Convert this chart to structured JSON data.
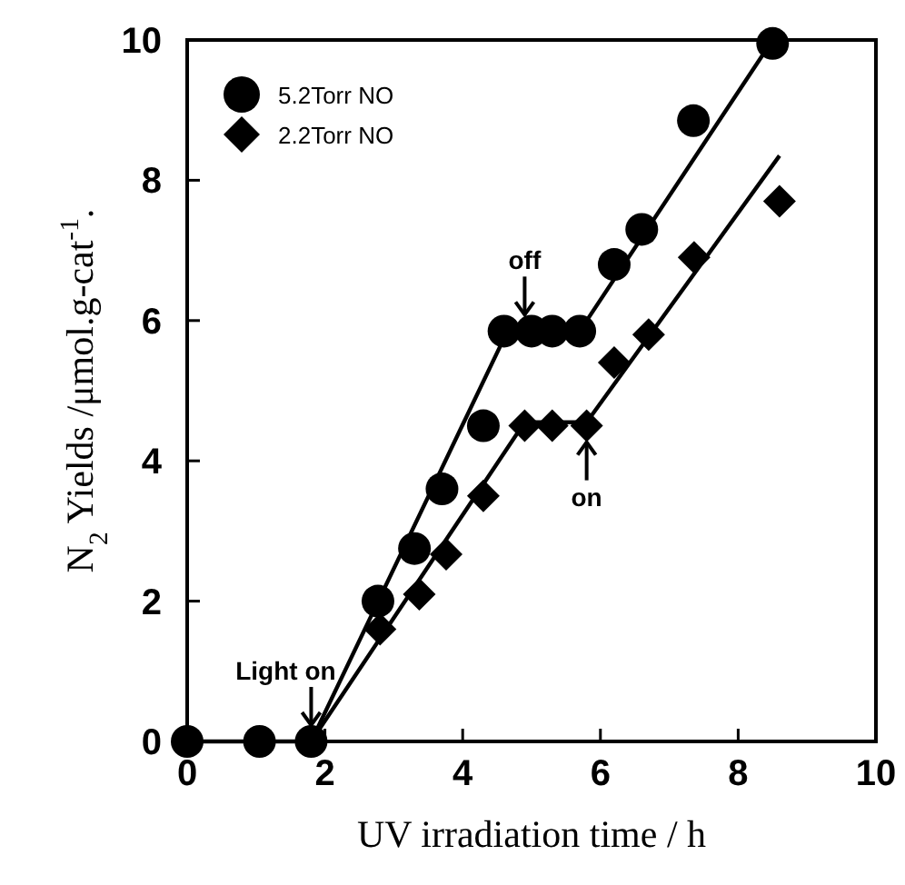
{
  "chart_data": {
    "type": "scatter",
    "xlabel": "UV irradiation time / h",
    "ylabel": "N$_{2}$ Yields /μmol.g-cat$^{-1}$.",
    "xlim": [
      0,
      10
    ],
    "ylim": [
      0,
      10
    ],
    "xticks": [
      0,
      2,
      4,
      6,
      8,
      10
    ],
    "yticks": [
      0,
      2,
      4,
      6,
      8,
      10
    ],
    "grid": false,
    "legend": "top left",
    "series": [
      {
        "name": "5.2Torr NO",
        "color": "#000000",
        "marker": "circle",
        "x": [
          0,
          1.05,
          1.8,
          2.77,
          3.3,
          3.7,
          4.3,
          4.6,
          5.0,
          5.3,
          5.7,
          6.2,
          6.6,
          7.35,
          8.5
        ],
        "values": [
          0,
          0,
          0,
          2.0,
          2.75,
          3.6,
          4.5,
          5.85,
          5.85,
          5.85,
          5.85,
          6.8,
          7.3,
          8.85,
          9.95
        ]
      },
      {
        "name": "2.2Torr NO",
        "color": "#000000",
        "marker": "diamond",
        "x": [
          2.8,
          3.37,
          3.76,
          4.3,
          4.9,
          5.3,
          5.8,
          6.2,
          6.7,
          7.36,
          8.6
        ],
        "values": [
          1.6,
          2.1,
          2.67,
          3.5,
          4.5,
          4.5,
          4.5,
          5.4,
          5.8,
          6.9,
          7.7
        ]
      },
      {
        "type": "line",
        "color": "#000000",
        "marker": "none",
        "x": [
          0,
          1.8,
          4.65,
          5.7,
          8.5
        ],
        "values": [
          0,
          0,
          5.85,
          5.85,
          10
        ]
      },
      {
        "type": "line",
        "color": "#000000",
        "marker": "none",
        "x": [
          1.8,
          4.9,
          5.8,
          8.6
        ],
        "values": [
          0,
          4.55,
          4.55,
          8.35
        ]
      }
    ],
    "annotations": [
      {
        "text": "Light on",
        "x": 1.8,
        "y": 0
      },
      {
        "text": "off",
        "x": 4.9,
        "y": 5.85
      },
      {
        "text": "on",
        "x": 5.8,
        "y": 4.5
      }
    ]
  }
}
